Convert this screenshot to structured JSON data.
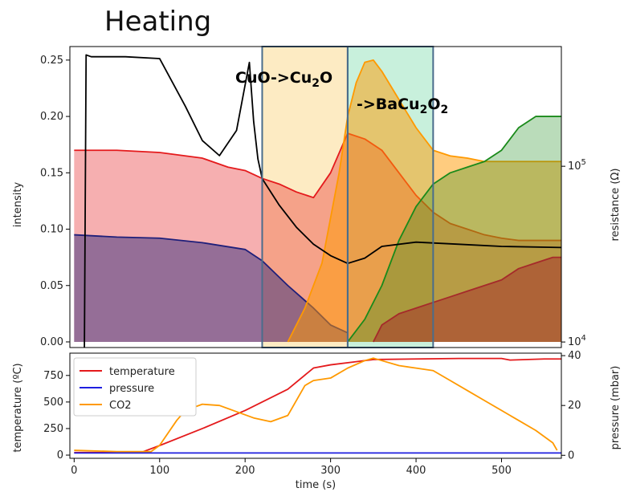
{
  "figure_title": "Heating",
  "annotations": {
    "reduction_main": "CuO->Cu",
    "reduction_sub": "2",
    "reduction_end": "O",
    "phase_prefix": "->BaCu",
    "phase_sub1": "2",
    "phase_mid": "O",
    "phase_sub2": "2"
  },
  "colors": {
    "red": "#e41a1c",
    "navy": "#1f1f7a",
    "orange": "#ff9900",
    "green": "#1a8a1a",
    "black": "#000000",
    "darkred": "#a52a2a",
    "region1_fill": "#fdebc3",
    "region2_fill": "#c8f0dc",
    "box_stroke": "#4a6d8c",
    "blue": "#1f1fe0"
  },
  "chart_data": [
    {
      "type": "area",
      "panel": "top",
      "xlim": [
        -5,
        570
      ],
      "ylim": [
        -0.005,
        0.262
      ],
      "ylabel": "intensity",
      "y2label": "resistance (Ω)",
      "y2scale": "log",
      "y2lim": [
        9300,
        480000
      ],
      "yticks": [
        "0.00",
        "0.05",
        "0.10",
        "0.15",
        "0.20",
        "0.25"
      ],
      "y2ticks": [
        {
          "base": "10",
          "exp": "4",
          "value": 10000
        },
        {
          "base": "10",
          "exp": "5",
          "value": 100000
        }
      ],
      "regions": [
        {
          "x0": 220,
          "x1": 320
        },
        {
          "x0": 320,
          "x1": 420
        }
      ],
      "series": [
        {
          "color_key": "red",
          "fill": true,
          "x": [
            0,
            50,
            100,
            150,
            180,
            200,
            220,
            240,
            260,
            280,
            300,
            320,
            340,
            360,
            380,
            400,
            420,
            440,
            460,
            480,
            500,
            520,
            540,
            560,
            570
          ],
          "y": [
            0.17,
            0.17,
            0.168,
            0.163,
            0.155,
            0.152,
            0.145,
            0.14,
            0.133,
            0.128,
            0.15,
            0.185,
            0.18,
            0.17,
            0.15,
            0.13,
            0.115,
            0.105,
            0.1,
            0.095,
            0.092,
            0.09,
            0.09,
            0.09,
            0.09
          ]
        },
        {
          "color_key": "navy",
          "fill": true,
          "x": [
            0,
            50,
            100,
            150,
            200,
            220,
            250,
            280,
            300,
            320
          ],
          "y": [
            0.095,
            0.093,
            0.092,
            0.088,
            0.082,
            0.072,
            0.05,
            0.03,
            0.015,
            0.008
          ]
        },
        {
          "color_key": "orange",
          "fill": true,
          "x": [
            250,
            270,
            290,
            310,
            320,
            330,
            340,
            350,
            360,
            380,
            400,
            420,
            440,
            460,
            480,
            500,
            520,
            540,
            560,
            570
          ],
          "y": [
            0.0,
            0.03,
            0.07,
            0.15,
            0.2,
            0.23,
            0.248,
            0.25,
            0.24,
            0.215,
            0.19,
            0.17,
            0.165,
            0.163,
            0.16,
            0.16,
            0.16,
            0.16,
            0.16,
            0.16
          ]
        },
        {
          "color_key": "green",
          "fill": true,
          "x": [
            320,
            340,
            360,
            380,
            400,
            420,
            440,
            460,
            480,
            500,
            510,
            520,
            540,
            560,
            570
          ],
          "y": [
            0.0,
            0.02,
            0.05,
            0.09,
            0.12,
            0.14,
            0.15,
            0.155,
            0.16,
            0.17,
            0.18,
            0.19,
            0.2,
            0.2,
            0.2
          ]
        },
        {
          "color_key": "darkred",
          "fill": true,
          "x": [
            350,
            360,
            380,
            400,
            420,
            440,
            460,
            480,
            500,
            520,
            540,
            560,
            570
          ],
          "y": [
            0.0,
            0.015,
            0.025,
            0.03,
            0.035,
            0.04,
            0.045,
            0.05,
            0.055,
            0.065,
            0.07,
            0.075,
            0.075
          ]
        },
        {
          "color_key": "black",
          "fill": false,
          "axis": "right",
          "x": [
            12,
            14,
            20,
            60,
            100,
            130,
            150,
            170,
            190,
            205,
            210,
            215,
            220,
            240,
            260,
            280,
            300,
            320,
            340,
            360,
            400,
            450,
            500,
            570
          ],
          "y": [
            9300,
            430000,
            420000,
            420000,
            410000,
            220000,
            140000,
            115000,
            160000,
            390000,
            180000,
            110000,
            85000,
            60000,
            45000,
            36000,
            31000,
            28000,
            30000,
            35000,
            37000,
            36000,
            35000,
            34500
          ]
        }
      ]
    },
    {
      "type": "line",
      "panel": "bottom",
      "xlim": [
        -5,
        570
      ],
      "ylim": [
        -30,
        960
      ],
      "y2lim": [
        -1.2,
        41
      ],
      "xlabel": "time (s)",
      "ylabel": "temperature (ºC)",
      "y2label": "pressure (mbar)",
      "xticks": [
        "0",
        "100",
        "200",
        "300",
        "400",
        "500"
      ],
      "yticks": [
        "0",
        "250",
        "500",
        "750"
      ],
      "y2ticks": [
        "0",
        "20",
        "40"
      ],
      "legend_position": "upper left",
      "series": [
        {
          "name": "temperature",
          "color_key": "red",
          "axis": "left",
          "x": [
            0,
            50,
            80,
            100,
            150,
            200,
            250,
            280,
            300,
            330,
            350,
            400,
            450,
            500,
            510,
            550,
            570
          ],
          "y": [
            25,
            25,
            30,
            90,
            250,
            420,
            620,
            820,
            850,
            880,
            900,
            905,
            910,
            910,
            895,
            905,
            905
          ]
        },
        {
          "name": "pressure",
          "color_key": "blue",
          "axis": "left",
          "x": [
            0,
            570
          ],
          "y": [
            20,
            20
          ]
        },
        {
          "name": "CO2",
          "color_key": "orange",
          "axis": "right",
          "x": [
            0,
            50,
            90,
            100,
            120,
            130,
            150,
            170,
            190,
            210,
            230,
            250,
            270,
            280,
            300,
            320,
            340,
            350,
            360,
            380,
            400,
            420,
            440,
            460,
            480,
            500,
            520,
            540,
            560,
            565
          ],
          "y": [
            2,
            1.5,
            1.5,
            4,
            14,
            18,
            20.5,
            20,
            17.5,
            15,
            13.5,
            16,
            28,
            30,
            31,
            35,
            38,
            39,
            38,
            36,
            35,
            34,
            30,
            26,
            22,
            18,
            14,
            10,
            5,
            2
          ]
        }
      ]
    }
  ]
}
